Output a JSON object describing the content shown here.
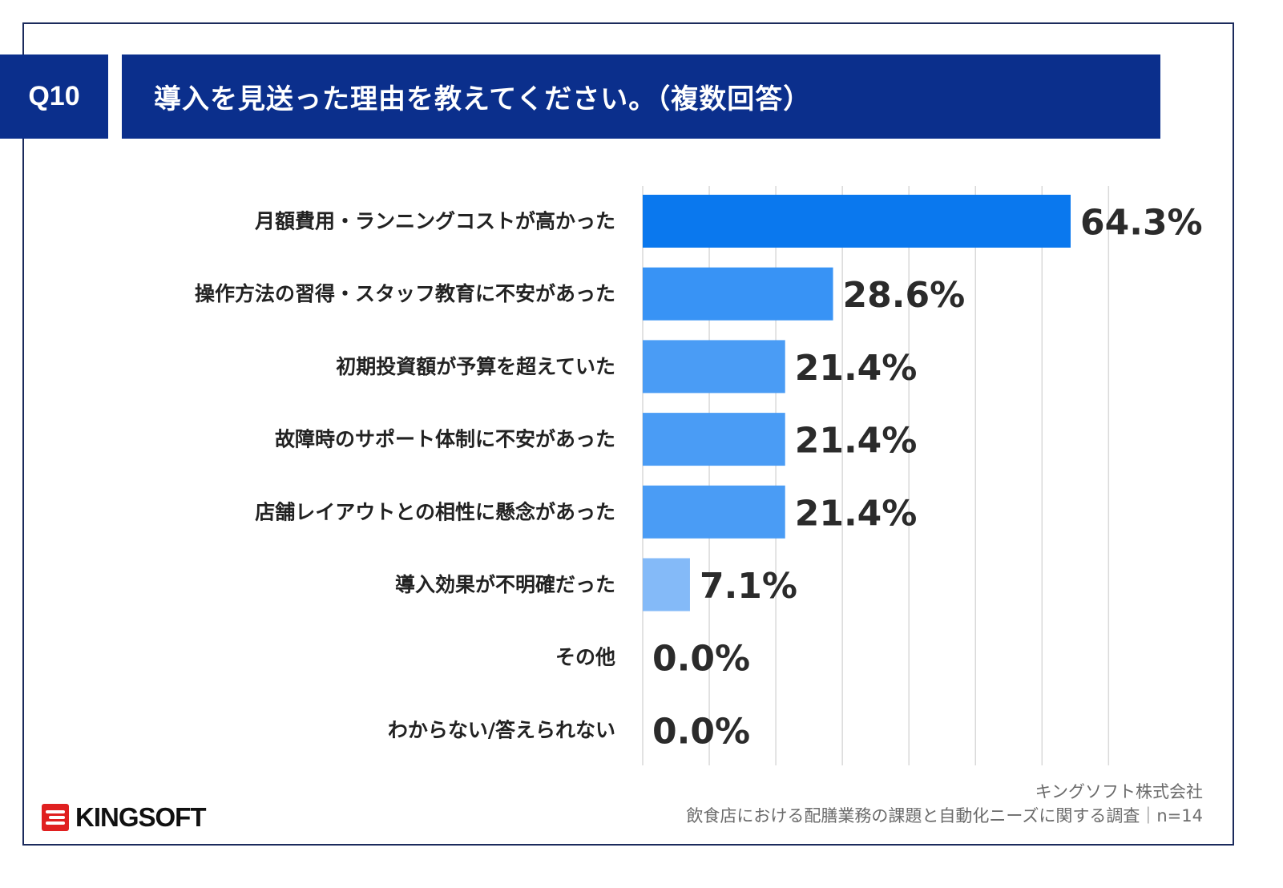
{
  "header": {
    "question_no": "Q10",
    "title": "導入を見送った理由を教えてください。（複数回答）"
  },
  "chart_data": {
    "type": "bar",
    "orientation": "horizontal",
    "categories": [
      "月額費用・ランニングコストが高かった",
      "操作方法の習得・スタッフ教育に不安があった",
      "初期投資額が予算を超えていた",
      "故障時のサポート体制に不安があった",
      "店舗レイアウトとの相性に懸念があった",
      "導入効果が不明確だった",
      "その他",
      "わからない/答えられない"
    ],
    "values": [
      64.3,
      28.6,
      21.4,
      21.4,
      21.4,
      7.1,
      0.0,
      0.0
    ],
    "value_labels": [
      "64.3%",
      "28.6%",
      "21.4%",
      "21.4%",
      "21.4%",
      "7.1%",
      "0.0%",
      "0.0%"
    ],
    "xlim": [
      0,
      70
    ],
    "grid": true,
    "colors": [
      "#0a78ee",
      "#3893f5",
      "#4a9cf5",
      "#4a9cf5",
      "#4a9cf5",
      "#84baf8",
      "#84baf8",
      "#84baf8"
    ]
  },
  "footer": {
    "company": "キングソフト株式会社",
    "survey": "飲食店における配膳業務の課題と自動化ニーズに関する調査｜n=14"
  },
  "logo": {
    "text": "KINGSOFT",
    "icon": "kingsoft-logo-icon"
  }
}
